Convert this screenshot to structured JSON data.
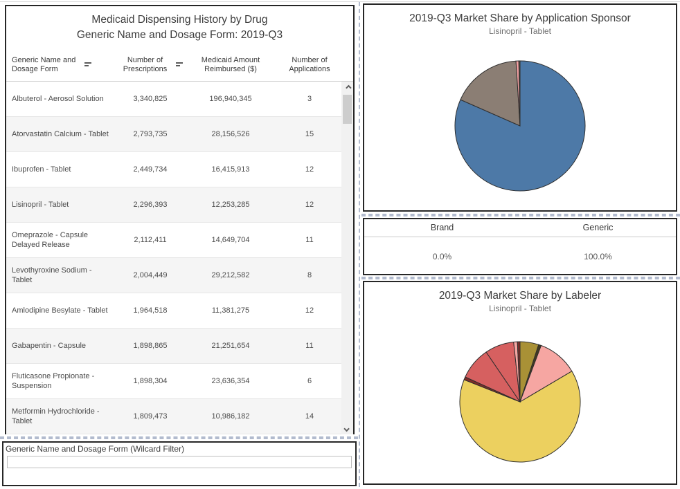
{
  "table_panel": {
    "title_line1": "Medicaid Dispensing History by Drug",
    "title_line2": "Generic Name and Dosage Form: 2019-Q3",
    "columns": [
      {
        "label": "Generic Name and Dosage Form",
        "sortable": true
      },
      {
        "label": "Number of Prescriptions",
        "sortable": true
      },
      {
        "label": "Medicaid Amount Reimbursed ($)",
        "sortable": false
      },
      {
        "label": "Number of Applications",
        "sortable": false
      }
    ],
    "rows": [
      {
        "name": "Albuterol - Aerosol Solution",
        "prescriptions": "3,340,825",
        "reimbursed": "196,940,345",
        "applications": "3"
      },
      {
        "name": "Atorvastatin Calcium - Tablet",
        "prescriptions": "2,793,735",
        "reimbursed": "28,156,526",
        "applications": "15"
      },
      {
        "name": "Ibuprofen - Tablet",
        "prescriptions": "2,449,734",
        "reimbursed": "16,415,913",
        "applications": "12"
      },
      {
        "name": "Lisinopril - Tablet",
        "prescriptions": "2,296,393",
        "reimbursed": "12,253,285",
        "applications": "12"
      },
      {
        "name": "Omeprazole - Capsule Delayed Release",
        "prescriptions": "2,112,411",
        "reimbursed": "14,649,704",
        "applications": "11"
      },
      {
        "name": "Levothyroxine Sodium - Tablet",
        "prescriptions": "2,004,449",
        "reimbursed": "29,212,582",
        "applications": "8"
      },
      {
        "name": "Amlodipine Besylate - Tablet",
        "prescriptions": "1,964,518",
        "reimbursed": "11,381,275",
        "applications": "12"
      },
      {
        "name": "Gabapentin - Capsule",
        "prescriptions": "1,898,865",
        "reimbursed": "21,251,654",
        "applications": "11"
      },
      {
        "name": "Fluticasone Propionate - Suspension",
        "prescriptions": "1,898,304",
        "reimbursed": "23,636,354",
        "applications": "6"
      },
      {
        "name": "Metformin Hydrochloride - Tablet",
        "prescriptions": "1,809,473",
        "reimbursed": "10,986,182",
        "applications": "14"
      }
    ]
  },
  "brand_generic": {
    "headers": [
      "Brand",
      "Generic"
    ],
    "values": [
      "0.0%",
      "100.0%"
    ]
  },
  "filter": {
    "label": "Generic Name and Dosage Form (Wilcard Filter)",
    "value": "",
    "placeholder": ""
  },
  "chart_data": [
    {
      "type": "pie",
      "title": "2019-Q3 Market Share by Application Sponsor",
      "subtitle": "Lisinopril - Tablet",
      "legend": "none",
      "data_labels": false,
      "start_angle_deg": 0,
      "direction": "clockwise",
      "slices": [
        {
          "name": "segment-1",
          "value": 81.6,
          "color": "#4d79a7"
        },
        {
          "name": "segment-2",
          "value": 17.4,
          "color": "#8b7e74"
        },
        {
          "name": "segment-3",
          "value": 0.7,
          "color": "#f4a2a3"
        },
        {
          "name": "segment-4",
          "value": 0.3,
          "color": "#5f5648"
        }
      ]
    },
    {
      "type": "pie",
      "title": "2019-Q3 Market Share by Labeler",
      "subtitle": "Lisinopril - Tablet",
      "legend": "none",
      "data_labels": false,
      "start_angle_deg": 0,
      "direction": "clockwise",
      "slices": [
        {
          "name": "segment-1",
          "value": 5.0,
          "color": "#a99136"
        },
        {
          "name": "segment-2",
          "value": 0.7,
          "color": "#433a20"
        },
        {
          "name": "segment-3",
          "value": 10.8,
          "color": "#f6a6a2"
        },
        {
          "name": "segment-4",
          "value": 64.5,
          "color": "#ecd05f"
        },
        {
          "name": "segment-5",
          "value": 0.8,
          "color": "#7d2d29"
        },
        {
          "name": "segment-6",
          "value": 8.7,
          "color": "#d66060"
        },
        {
          "name": "segment-7",
          "value": 7.8,
          "color": "#d66060"
        },
        {
          "name": "segment-8",
          "value": 1.0,
          "color": "#f6a6a2"
        },
        {
          "name": "segment-9",
          "value": 0.7,
          "color": "#7d2d29"
        }
      ]
    }
  ],
  "icons": {
    "sort": "sort-descending-icon",
    "scroll_up": "chevron-up-icon",
    "scroll_down": "chevron-down-icon"
  },
  "colors": {
    "panel_border": "#262626",
    "dashed_divider": "#b2bbce",
    "row_stripe": "#f5f5f5",
    "scroll_track": "#f1f1f1",
    "scroll_thumb": "#cdcdcd"
  }
}
